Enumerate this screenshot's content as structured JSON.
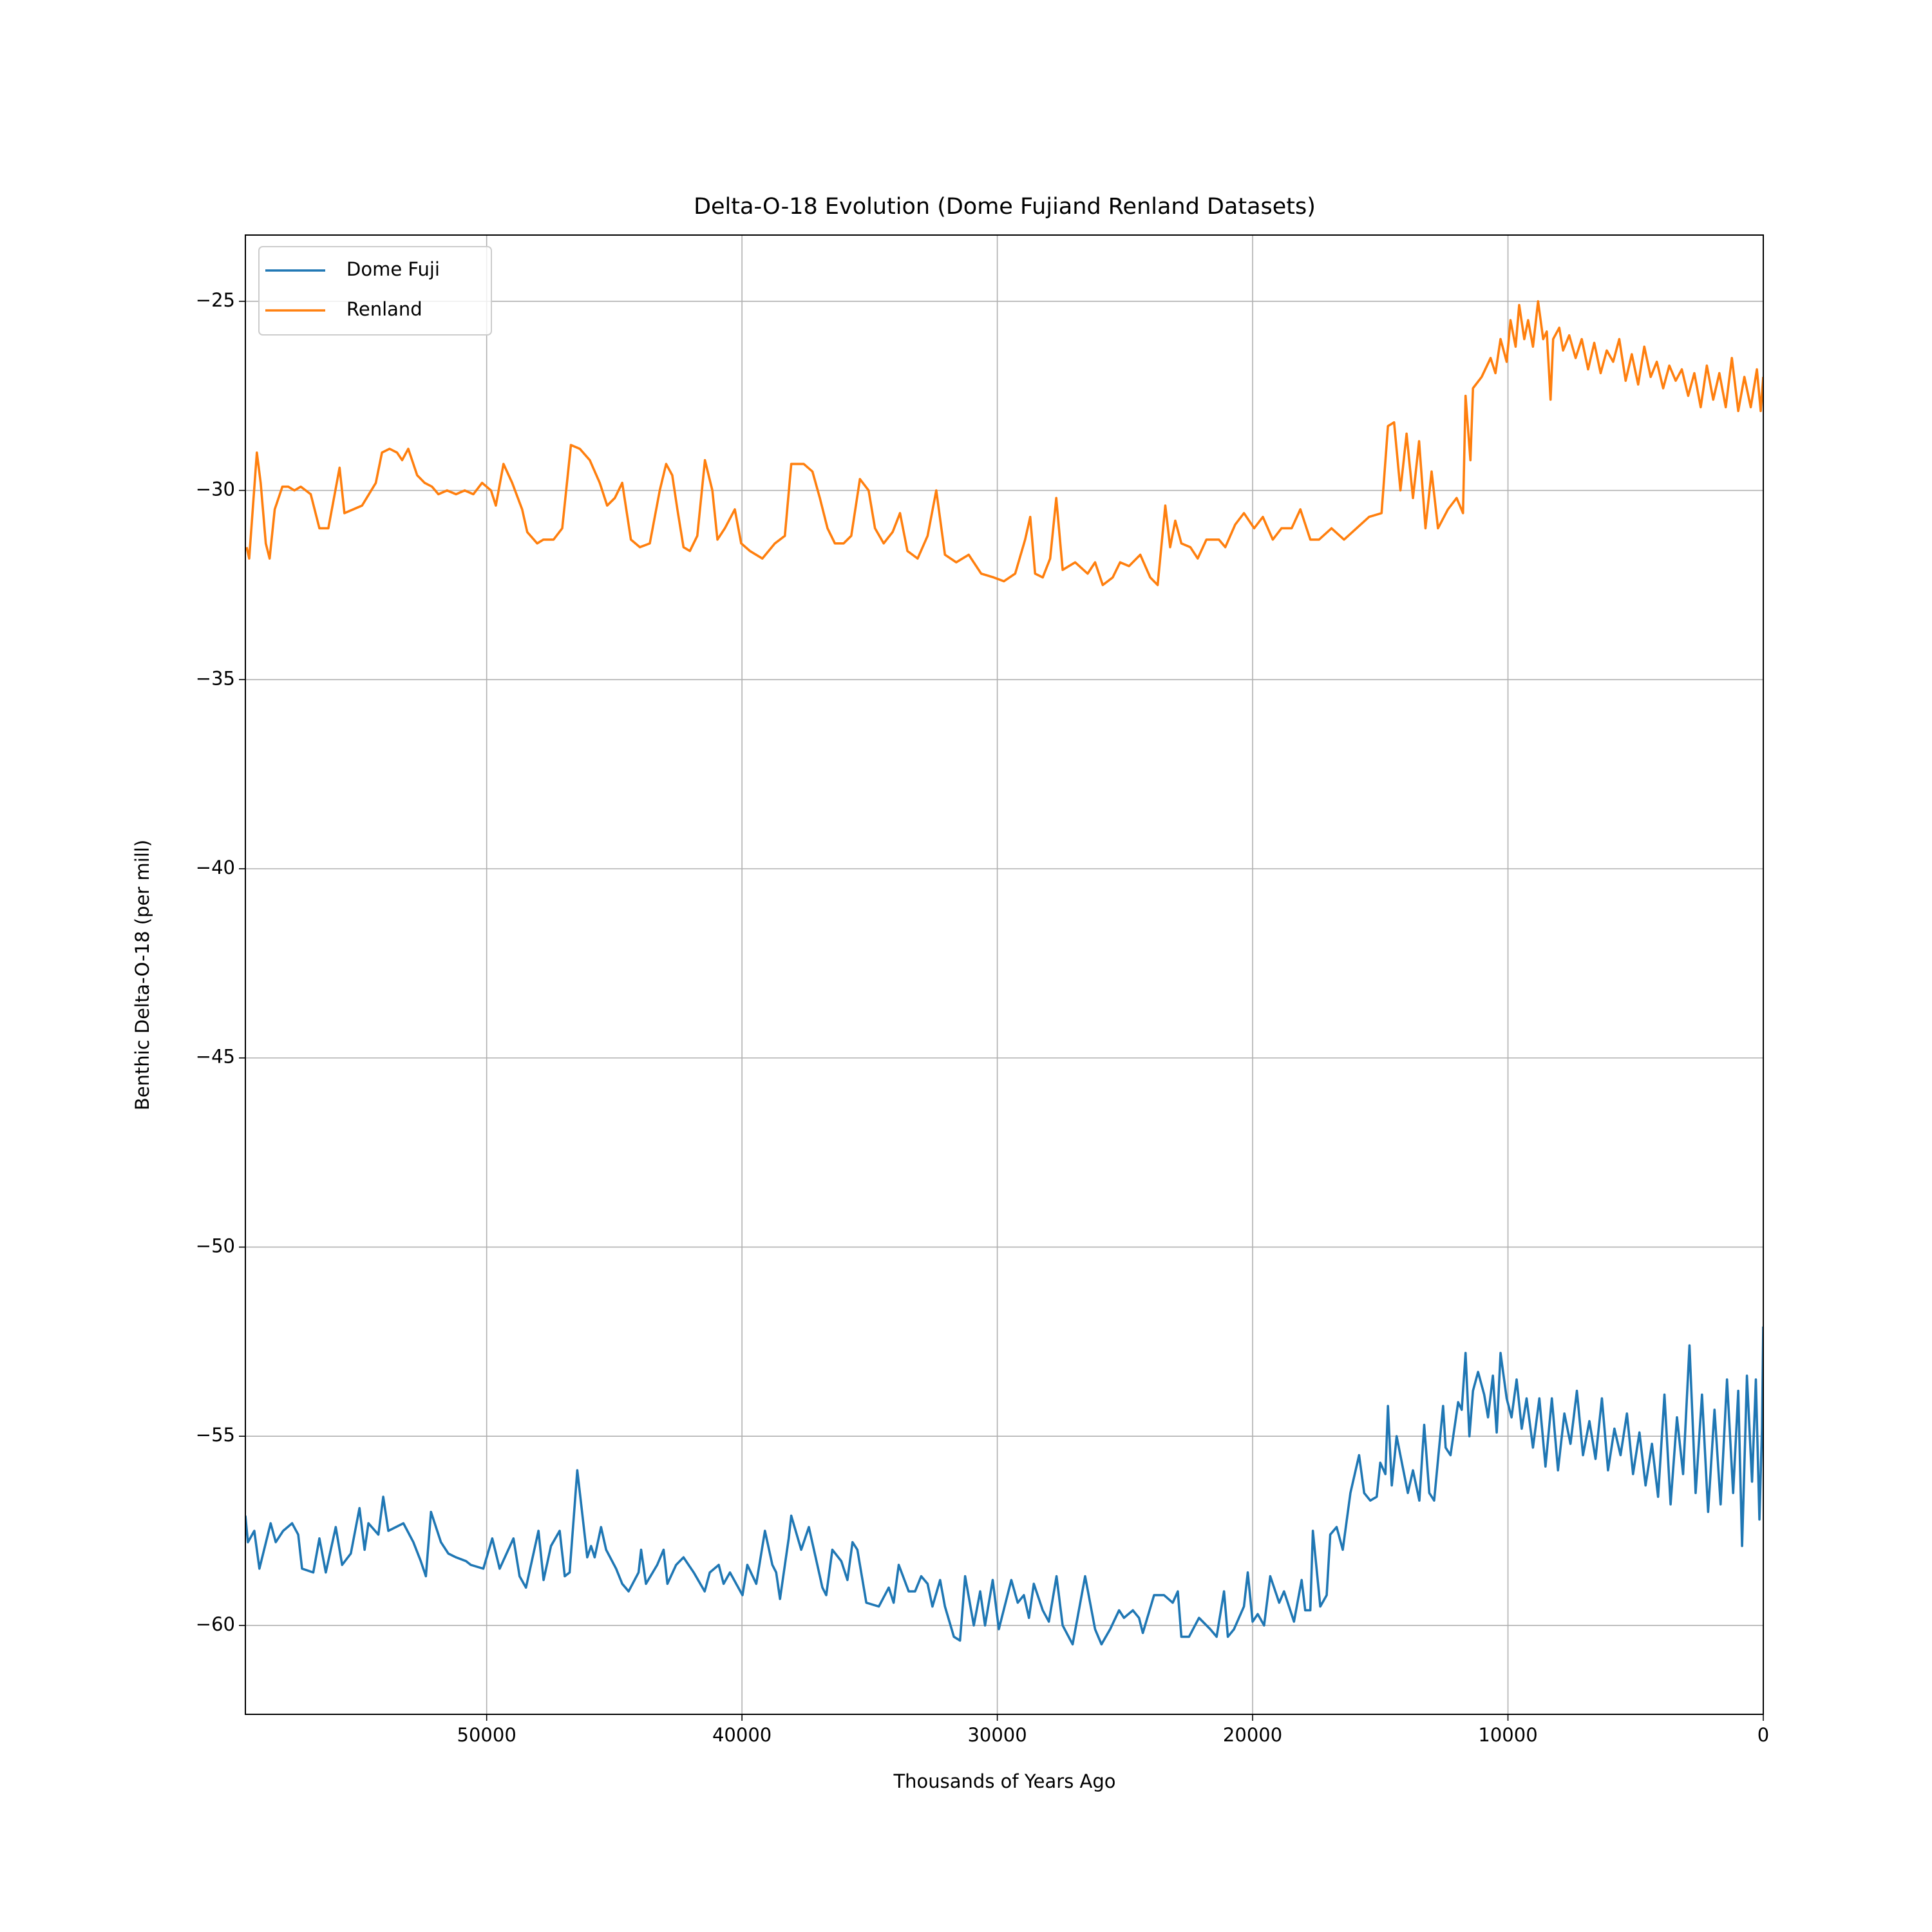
{
  "chart_data": {
    "type": "line",
    "title": "Delta-O-18 Evolution (Dome Fujiand Renland Datasets)",
    "x_label": "Thousands of Years Ago",
    "y_label": "Benthic Delta-O-18 (per mill)",
    "xlim": [
      59450,
      0
    ],
    "ylim": [
      -62.35,
      -23.25
    ],
    "xticks": [
      50000,
      40000,
      30000,
      20000,
      10000,
      0
    ],
    "yticks": [
      {
        "value": -25,
        "label": "−25"
      },
      {
        "value": -30,
        "label": "−30"
      },
      {
        "value": -35,
        "label": "−35"
      },
      {
        "value": -40,
        "label": "−40"
      },
      {
        "value": -45,
        "label": "−45"
      },
      {
        "value": -50,
        "label": "−50"
      },
      {
        "value": -55,
        "label": "−55"
      },
      {
        "value": -60,
        "label": "−60"
      }
    ],
    "grid": true,
    "legend": "upper left",
    "series": [
      {
        "name": "Dome Fuji",
        "color": "#1f77b4",
        "x": [
          59450,
          59350,
          59100,
          58900,
          58460,
          58260,
          57970,
          57620,
          57380,
          57230,
          56790,
          56550,
          56300,
          55910,
          55660,
          55320,
          54980,
          54780,
          54630,
          54240,
          54050,
          53850,
          53260,
          52870,
          52580,
          52380,
          52180,
          51790,
          51500,
          51200,
          50810,
          50620,
          50130,
          49780,
          49490,
          48950,
          48710,
          48460,
          47970,
          47770,
          47480,
          47140,
          46940,
          46750,
          46450,
          46060,
          45910,
          45770,
          45520,
          45320,
          44930,
          44690,
          44440,
          44050,
          43950,
          43760,
          43320,
          43070,
          42920,
          42580,
          42290,
          41890,
          41460,
          41260,
          40910,
          40720,
          40470,
          39980,
          39790,
          39440,
          39100,
          38810,
          38660,
          38510,
          38170,
          38070,
          37680,
          37380,
          36850,
          36700,
          36460,
          36110,
          35870,
          35670,
          35480,
          35130,
          34640,
          34250,
          34060,
          33860,
          33470,
          33220,
          32980,
          32730,
          32540,
          32240,
          32050,
          31700,
          31460,
          31260,
          30920,
          30670,
          30480,
          30180,
          29940,
          29450,
          29200,
          28960,
          28760,
          28570,
          28220,
          27980,
          27680,
          27440,
          27050,
          26560,
          26170,
          25920,
          25580,
          25230,
          25040,
          24690,
          24450,
          24300,
          23860,
          23470,
          23130,
          22930,
          22790,
          22490,
          22100,
          21660,
          21410,
          21120,
          20970,
          20730,
          20340,
          20190,
          20000,
          19800,
          19550,
          19310,
          18960,
          18770,
          18380,
          18080,
          17940,
          17740,
          17640,
          17350,
          17100,
          16960,
          16710,
          16470,
          16170,
          15830,
          15630,
          15390,
          15140,
          15000,
          14800,
          14700,
          14550,
          14360,
          13920,
          13720,
          13470,
          13280,
          13080,
          12890,
          12540,
          12440,
          12250,
          11950,
          11810,
          11660,
          11510,
          11370,
          11170,
          10930,
          10780,
          10590,
          10440,
          10290,
          10050,
          9860,
          9660,
          9460,
          9270,
          9020,
          8770,
          8530,
          8280,
          8040,
          7790,
          7550,
          7300,
          7060,
          6810,
          6570,
          6320,
          6080,
          5830,
          5590,
          5340,
          5100,
          4850,
          4610,
          4360,
          4120,
          3870,
          3630,
          3380,
          3140,
          2890,
          2650,
          2400,
          2160,
          1910,
          1670,
          1420,
          1180,
          980,
          830,
          640,
          440,
          290,
          150,
          50,
          0
        ],
        "values": [
          -57.1,
          -57.8,
          -57.5,
          -58.5,
          -57.3,
          -57.8,
          -57.5,
          -57.3,
          -57.6,
          -58.5,
          -58.6,
          -57.7,
          -58.6,
          -57.4,
          -58.4,
          -58.1,
          -56.9,
          -58.0,
          -57.3,
          -57.6,
          -56.6,
          -57.5,
          -57.3,
          -57.8,
          -58.3,
          -58.7,
          -57.0,
          -57.8,
          -58.1,
          -58.2,
          -58.3,
          -58.4,
          -58.5,
          -57.7,
          -58.5,
          -57.7,
          -58.7,
          -59.0,
          -57.5,
          -58.8,
          -57.9,
          -57.5,
          -58.7,
          -58.6,
          -55.9,
          -58.2,
          -57.9,
          -58.2,
          -57.4,
          -58.0,
          -58.5,
          -58.9,
          -59.1,
          -58.6,
          -58.0,
          -58.9,
          -58.4,
          -58.0,
          -58.9,
          -58.4,
          -58.2,
          -58.6,
          -59.1,
          -58.6,
          -58.4,
          -58.9,
          -58.6,
          -59.2,
          -58.4,
          -58.9,
          -57.5,
          -58.4,
          -58.6,
          -59.3,
          -57.7,
          -57.1,
          -58.0,
          -57.4,
          -59.0,
          -59.2,
          -58.0,
          -58.3,
          -58.8,
          -57.8,
          -58.0,
          -59.4,
          -59.5,
          -59.0,
          -59.4,
          -58.4,
          -59.1,
          -59.1,
          -58.7,
          -58.9,
          -59.5,
          -58.8,
          -59.5,
          -60.3,
          -60.4,
          -58.7,
          -60.0,
          -59.1,
          -60.0,
          -58.8,
          -60.1,
          -58.8,
          -59.4,
          -59.2,
          -59.8,
          -58.9,
          -59.6,
          -59.9,
          -58.7,
          -60.0,
          -60.5,
          -58.7,
          -60.1,
          -60.5,
          -60.1,
          -59.6,
          -59.8,
          -59.6,
          -59.8,
          -60.2,
          -59.2,
          -59.2,
          -59.4,
          -59.1,
          -60.3,
          -60.3,
          -59.8,
          -60.1,
          -60.3,
          -59.1,
          -60.3,
          -60.1,
          -59.5,
          -58.6,
          -59.9,
          -59.7,
          -60.0,
          -58.7,
          -59.4,
          -59.1,
          -59.9,
          -58.8,
          -59.6,
          -59.6,
          -57.5,
          -59.5,
          -59.2,
          -57.6,
          -57.4,
          -58.0,
          -56.5,
          -55.5,
          -56.5,
          -56.7,
          -56.6,
          -55.7,
          -56.0,
          -54.2,
          -56.3,
          -55.0,
          -56.5,
          -55.9,
          -56.7,
          -54.7,
          -56.5,
          -56.7,
          -54.2,
          -55.3,
          -55.5,
          -54.1,
          -54.3,
          -52.8,
          -55.0,
          -53.8,
          -53.3,
          -53.9,
          -54.5,
          -53.4,
          -54.9,
          -52.8,
          -54.0,
          -54.5,
          -53.5,
          -54.8,
          -54.0,
          -55.3,
          -54.0,
          -55.8,
          -54.0,
          -55.9,
          -54.4,
          -55.2,
          -53.8,
          -55.5,
          -54.6,
          -55.6,
          -54.0,
          -55.9,
          -54.8,
          -55.5,
          -54.4,
          -56.0,
          -54.9,
          -56.3,
          -55.2,
          -56.6,
          -53.9,
          -56.8,
          -54.5,
          -56.0,
          -52.6,
          -56.5,
          -53.9,
          -57.0,
          -54.3,
          -56.8,
          -53.5,
          -56.5,
          -53.8,
          -57.9,
          -53.4,
          -56.2,
          -53.5,
          -57.2,
          -54.8,
          -52.1
        ]
      },
      {
        "name": "Renland",
        "color": "#ff7f0e",
        "x": [
          59400,
          59300,
          59000,
          58850,
          58650,
          58500,
          58300,
          58000,
          57770,
          57530,
          57280,
          56890,
          56550,
          56200,
          55760,
          55570,
          54880,
          54340,
          54100,
          53800,
          53510,
          53310,
          53070,
          52720,
          52430,
          52140,
          51890,
          51550,
          51200,
          50860,
          50520,
          50180,
          49830,
          49640,
          49340,
          49000,
          48610,
          48410,
          48020,
          47780,
          47380,
          47040,
          46700,
          46350,
          45960,
          45570,
          45280,
          44980,
          44690,
          44350,
          44000,
          43610,
          43220,
          42970,
          42730,
          42530,
          42290,
          42040,
          41750,
          41450,
          41160,
          40960,
          40670,
          40280,
          40030,
          39690,
          39200,
          38710,
          38320,
          38070,
          37580,
          37240,
          36950,
          36650,
          36360,
          36020,
          35720,
          35380,
          35040,
          34790,
          34450,
          34100,
          33810,
          33520,
          33120,
          32730,
          32390,
          32050,
          31610,
          31120,
          30630,
          30140,
          29740,
          29300,
          28910,
          28710,
          28520,
          28220,
          27930,
          27690,
          27440,
          26950,
          26460,
          26170,
          25870,
          25480,
          25190,
          24840,
          24400,
          24010,
          23720,
          23420,
          23230,
          23030,
          22790,
          22440,
          22150,
          21810,
          21320,
          21070,
          20680,
          20340,
          19940,
          19600,
          19210,
          18870,
          18470,
          18130,
          17740,
          17400,
          16910,
          16420,
          15930,
          15440,
          14950,
          14700,
          14460,
          14210,
          13970,
          13720,
          13480,
          13230,
          12990,
          12740,
          12350,
          12010,
          11760,
          11660,
          11470,
          11370,
          11030,
          10680,
          10490,
          10290,
          10050,
          9900,
          9700,
          9560,
          9360,
          9210,
          9020,
          8820,
          8620,
          8480,
          8330,
          8230,
          7990,
          7840,
          7600,
          7350,
          7110,
          6860,
          6620,
          6370,
          6130,
          5880,
          5640,
          5390,
          5150,
          4900,
          4660,
          4410,
          4170,
          3920,
          3680,
          3430,
          3190,
          2940,
          2700,
          2450,
          2210,
          1960,
          1720,
          1470,
          1230,
          980,
          740,
          490,
          250,
          100,
          0
        ],
        "values": [
          -31.5,
          -31.8,
          -29.0,
          -29.8,
          -31.4,
          -31.8,
          -30.5,
          -29.9,
          -29.9,
          -30.0,
          -29.9,
          -30.1,
          -31.0,
          -31.0,
          -29.4,
          -30.6,
          -30.4,
          -29.8,
          -29.0,
          -28.9,
          -29.0,
          -29.2,
          -28.9,
          -29.6,
          -29.8,
          -29.9,
          -30.1,
          -30.0,
          -30.1,
          -30.0,
          -30.1,
          -29.8,
          -30.0,
          -30.4,
          -29.3,
          -29.8,
          -30.5,
          -31.1,
          -31.4,
          -31.3,
          -31.3,
          -31.0,
          -28.8,
          -28.9,
          -29.2,
          -29.8,
          -30.4,
          -30.2,
          -29.8,
          -31.3,
          -31.5,
          -31.4,
          -30.0,
          -29.3,
          -29.6,
          -30.5,
          -31.5,
          -31.6,
          -31.2,
          -29.2,
          -30.0,
          -31.3,
          -31.0,
          -30.5,
          -31.4,
          -31.6,
          -31.8,
          -31.4,
          -31.2,
          -29.3,
          -29.3,
          -29.5,
          -30.2,
          -31.0,
          -31.4,
          -31.4,
          -31.2,
          -29.7,
          -30.0,
          -31.0,
          -31.4,
          -31.1,
          -30.6,
          -31.6,
          -31.8,
          -31.2,
          -30.0,
          -31.7,
          -31.9,
          -31.7,
          -32.2,
          -32.3,
          -32.4,
          -32.2,
          -31.3,
          -30.7,
          -32.2,
          -32.3,
          -31.8,
          -30.2,
          -32.1,
          -31.9,
          -32.2,
          -31.9,
          -32.5,
          -32.3,
          -31.9,
          -32.0,
          -31.7,
          -32.3,
          -32.5,
          -30.4,
          -31.5,
          -30.8,
          -31.4,
          -31.5,
          -31.8,
          -31.3,
          -31.3,
          -31.5,
          -30.9,
          -30.6,
          -31.0,
          -30.7,
          -31.3,
          -31.0,
          -31.0,
          -30.5,
          -31.3,
          -31.3,
          -31.0,
          -31.3,
          -31.0,
          -30.7,
          -30.6,
          -28.3,
          -28.2,
          -30.0,
          -28.5,
          -30.2,
          -28.7,
          -31.0,
          -29.5,
          -31.0,
          -30.5,
          -30.2,
          -30.6,
          -27.5,
          -29.2,
          -27.3,
          -27.0,
          -26.5,
          -26.9,
          -26.0,
          -26.6,
          -25.5,
          -26.2,
          -25.1,
          -26.0,
          -25.5,
          -26.2,
          -25.0,
          -26.0,
          -25.8,
          -27.6,
          -26.0,
          -25.7,
          -26.3,
          -25.9,
          -26.5,
          -26.0,
          -26.8,
          -26.1,
          -26.9,
          -26.3,
          -26.6,
          -26.0,
          -27.1,
          -26.4,
          -27.2,
          -26.2,
          -27.0,
          -26.6,
          -27.3,
          -26.7,
          -27.1,
          -26.8,
          -27.5,
          -26.9,
          -27.8,
          -26.7,
          -27.6,
          -26.9,
          -27.8,
          -26.5,
          -27.9,
          -27.0,
          -27.8,
          -26.8,
          -27.9,
          -27.0
        ]
      }
    ]
  }
}
